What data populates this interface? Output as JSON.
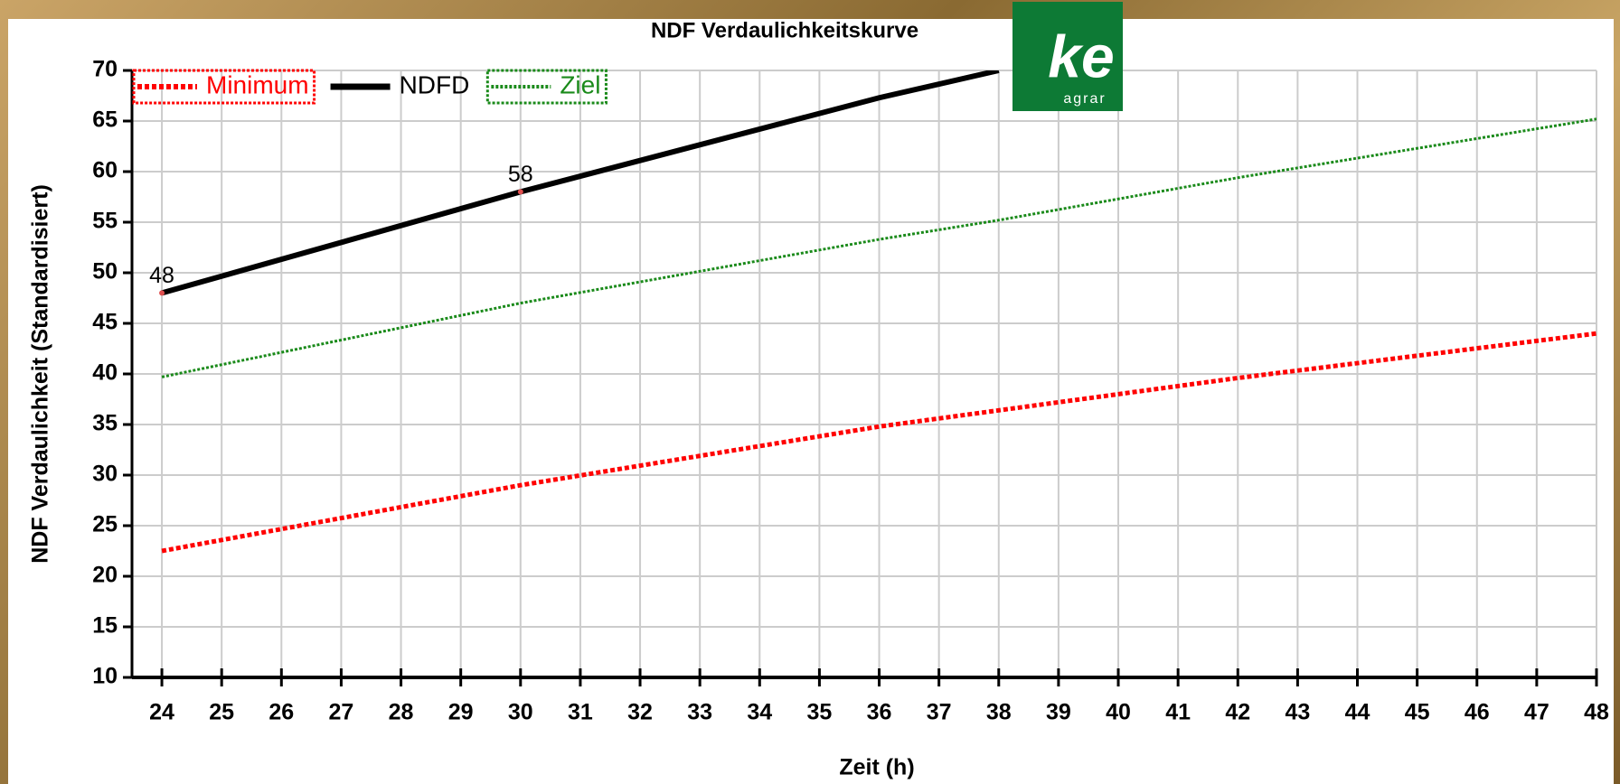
{
  "chart_data": {
    "type": "line",
    "title": "NDF Verdaulichkeitskurve",
    "xlabel": "Zeit (h)",
    "ylabel": "NDF Verdaulichkeit (Standardisiert)",
    "x": [
      24,
      30,
      36,
      38,
      42,
      48
    ],
    "series": [
      {
        "name": "Minimum",
        "color": "#ff0000",
        "style": "dotted",
        "values": [
          22.5,
          29.0,
          34.8,
          36.4,
          39.6,
          44.0
        ]
      },
      {
        "name": "NDFD",
        "color": "#000000",
        "style": "solid",
        "values": [
          48,
          58,
          67.3,
          70,
          null,
          null
        ],
        "value_labels": [
          "48",
          "58",
          null,
          null,
          null,
          null
        ]
      },
      {
        "name": "Ziel",
        "color": "#1a8a1a",
        "style": "dotted",
        "values": [
          39.7,
          47.0,
          53.3,
          55.2,
          59.4,
          65.2
        ]
      }
    ],
    "xlim": [
      23.5,
      48
    ],
    "xticks": [
      24,
      25,
      26,
      27,
      28,
      29,
      30,
      31,
      32,
      33,
      34,
      35,
      36,
      37,
      38,
      39,
      40,
      41,
      42,
      43,
      44,
      45,
      46,
      47,
      48
    ],
    "ylim": [
      10,
      70
    ],
    "yticks": [
      10,
      15,
      20,
      25,
      30,
      35,
      40,
      45,
      50,
      55,
      60,
      65,
      70
    ],
    "grid": true,
    "legend": "upper left"
  },
  "logo": {
    "mark": "ke",
    "text": "agrar"
  }
}
